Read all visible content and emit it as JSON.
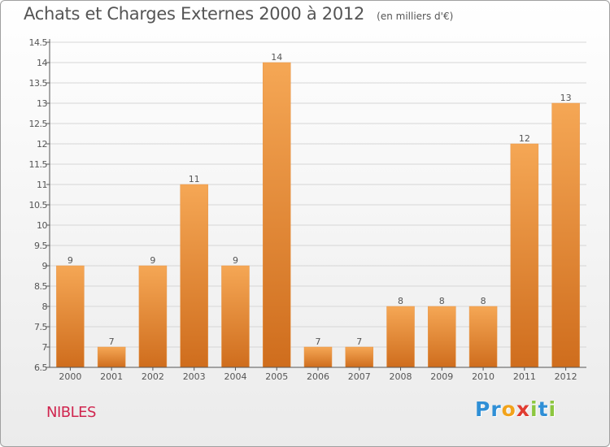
{
  "title": "Achats et Charges Externes 2000 à 2012",
  "subtitle": "(en milliers d'€)",
  "commune": "NIBLES",
  "logo": {
    "letters": [
      {
        "ch": "P",
        "color": "#2f8fd6"
      },
      {
        "ch": "r",
        "color": "#2f8fd6"
      },
      {
        "ch": "o",
        "color": "#f2a31b"
      },
      {
        "ch": "x",
        "color": "#e03c31"
      },
      {
        "ch": "i",
        "color": "#8cc63f"
      },
      {
        "ch": "t",
        "color": "#2f8fd6"
      },
      {
        "ch": "i",
        "color": "#8cc63f"
      }
    ]
  },
  "colors": {
    "bar_light": "#f5a755",
    "bar_dark": "#cf6d1d",
    "axis": "#555555",
    "grid": "#d6d6d6",
    "text": "#555555"
  },
  "chart_data": {
    "type": "bar",
    "categories": [
      "2000",
      "2001",
      "2002",
      "2003",
      "2004",
      "2005",
      "2006",
      "2007",
      "2008",
      "2009",
      "2010",
      "2011",
      "2012"
    ],
    "values": [
      9,
      7,
      9,
      11,
      9,
      14,
      7,
      7,
      8,
      8,
      8,
      12,
      13
    ],
    "data_labels": [
      "9",
      "7",
      "9",
      "11",
      "9",
      "14",
      "7",
      "7",
      "8",
      "8",
      "8",
      "12",
      "13"
    ],
    "ylim": [
      6.5,
      14.5
    ],
    "yticks": [
      6.5,
      7,
      7.5,
      8,
      8.5,
      9,
      9.5,
      10,
      10.5,
      11,
      11.5,
      12,
      12.5,
      13,
      13.5,
      14,
      14.5
    ],
    "ytick_labels": [
      "6.5",
      "7",
      "7.5",
      "8",
      "8.5",
      "9",
      "9.5",
      "10",
      "10.5",
      "11",
      "11.5",
      "12",
      "12.5",
      "13",
      "13.5",
      "14",
      "14.5"
    ],
    "grid": true,
    "legend": "none"
  }
}
